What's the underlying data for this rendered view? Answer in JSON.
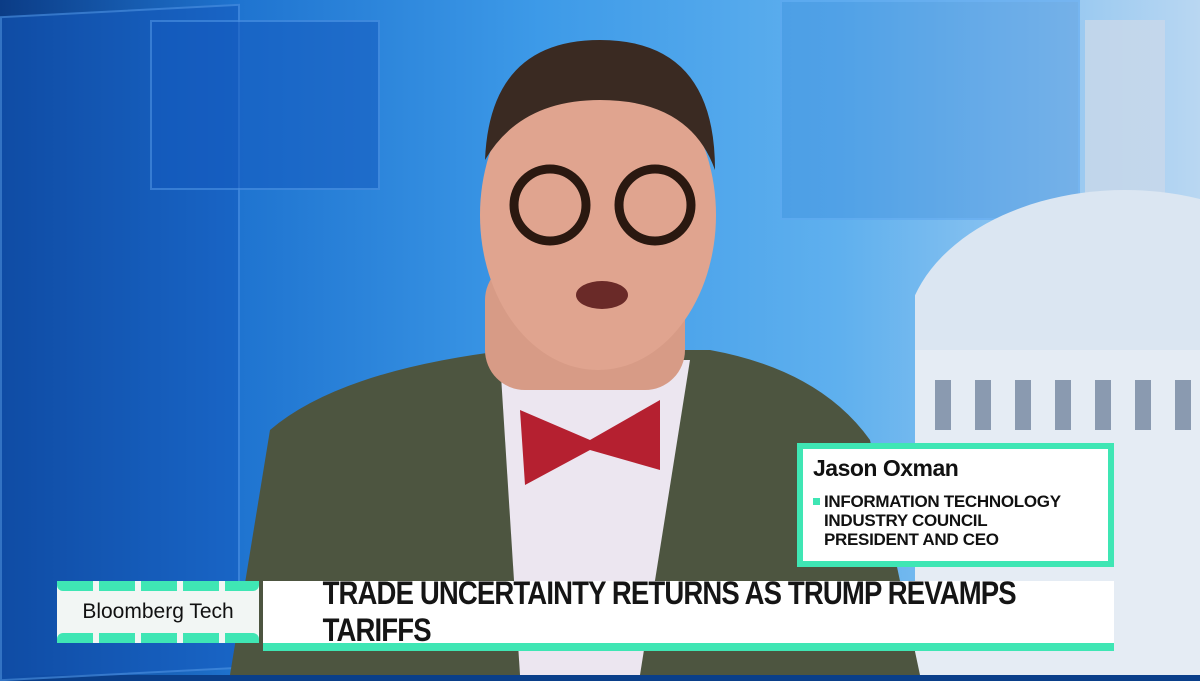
{
  "lower_third": {
    "guest_name": "Jason Oxman",
    "guest_title_lines": [
      "INFORMATION TECHNOLOGY",
      "INDUSTRY COUNCIL",
      "PRESIDENT AND CEO"
    ],
    "show_name": "Bloomberg Tech",
    "headline": "TRADE UNCERTAINTY RETURNS AS TRUMP REVAMPS TARIFFS"
  },
  "colors": {
    "accent": "#3fe6b4",
    "background": "#2f86dc"
  }
}
